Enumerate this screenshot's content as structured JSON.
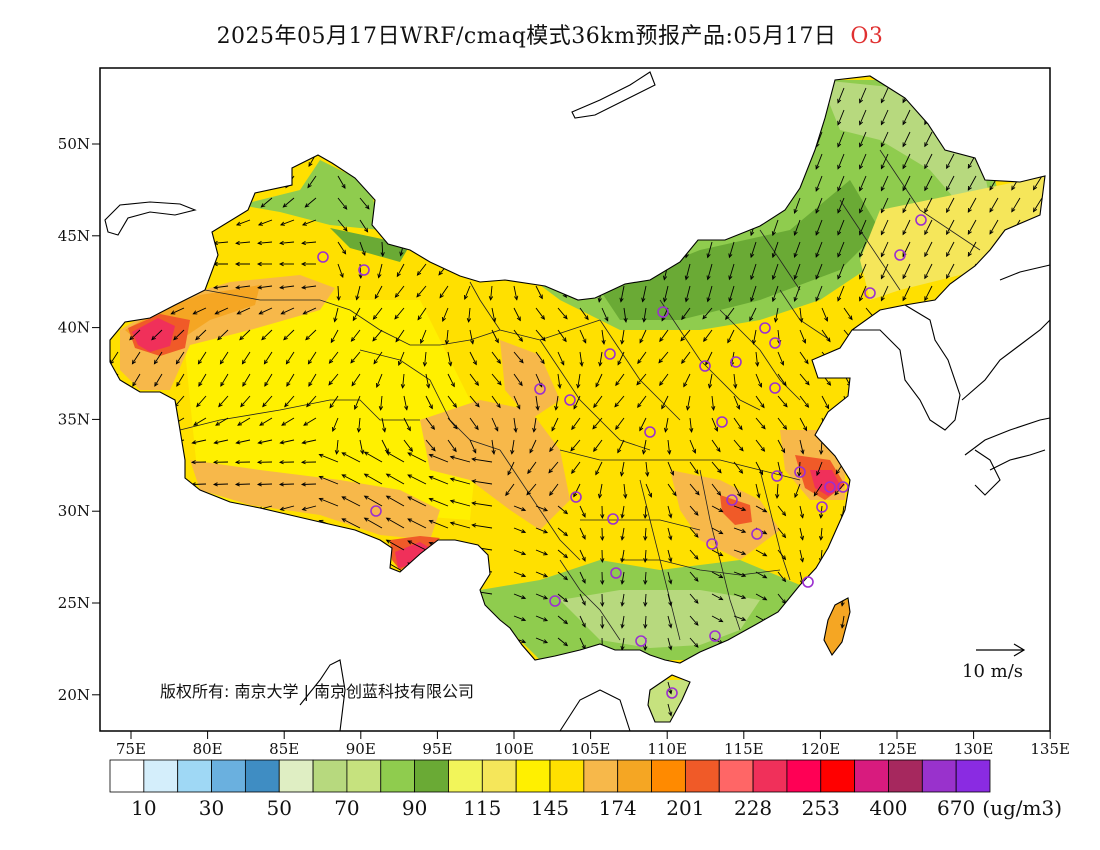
{
  "title": {
    "text": "2025年05月17日WRF/cmaq模式36km预报产品:05月17日",
    "pollutant": "O3",
    "pollutant_color": "#e03030"
  },
  "map": {
    "lon_labels": [
      "75E",
      "80E",
      "85E",
      "90E",
      "95E",
      "100E",
      "105E",
      "110E",
      "115E",
      "120E",
      "125E",
      "130E",
      "135E"
    ],
    "lat_labels": [
      "50N",
      "45N",
      "40N",
      "35N",
      "30N",
      "25N",
      "20N"
    ],
    "copyright_text": "版权所有: 南京大学 | 南京创蓝科技有限公司",
    "wind_reference": "10 m/s"
  },
  "legend": {
    "colors": [
      "#ffffff",
      "#d4eefb",
      "#9fd8f5",
      "#6ab0df",
      "#3f8dc3",
      "#dfeec3",
      "#b7d97e",
      "#c6e27e",
      "#8fcc4e",
      "#6aaa35",
      "#f2f55a",
      "#f5e65a",
      "#fff000",
      "#ffe000",
      "#f7b84a",
      "#f5a623",
      "#ff8a00",
      "#f05a28",
      "#ff6666",
      "#f0305a",
      "#ff0055",
      "#ff0000",
      "#d81b7e",
      "#a6285e",
      "#9932cc",
      "#8a2be2"
    ],
    "labels": [
      "10",
      "30",
      "50",
      "70",
      "90",
      "115",
      "145",
      "174",
      "201",
      "228",
      "253",
      "400",
      "670"
    ],
    "unit": "(ug/m3)"
  },
  "station_color": "#9b30d0"
}
